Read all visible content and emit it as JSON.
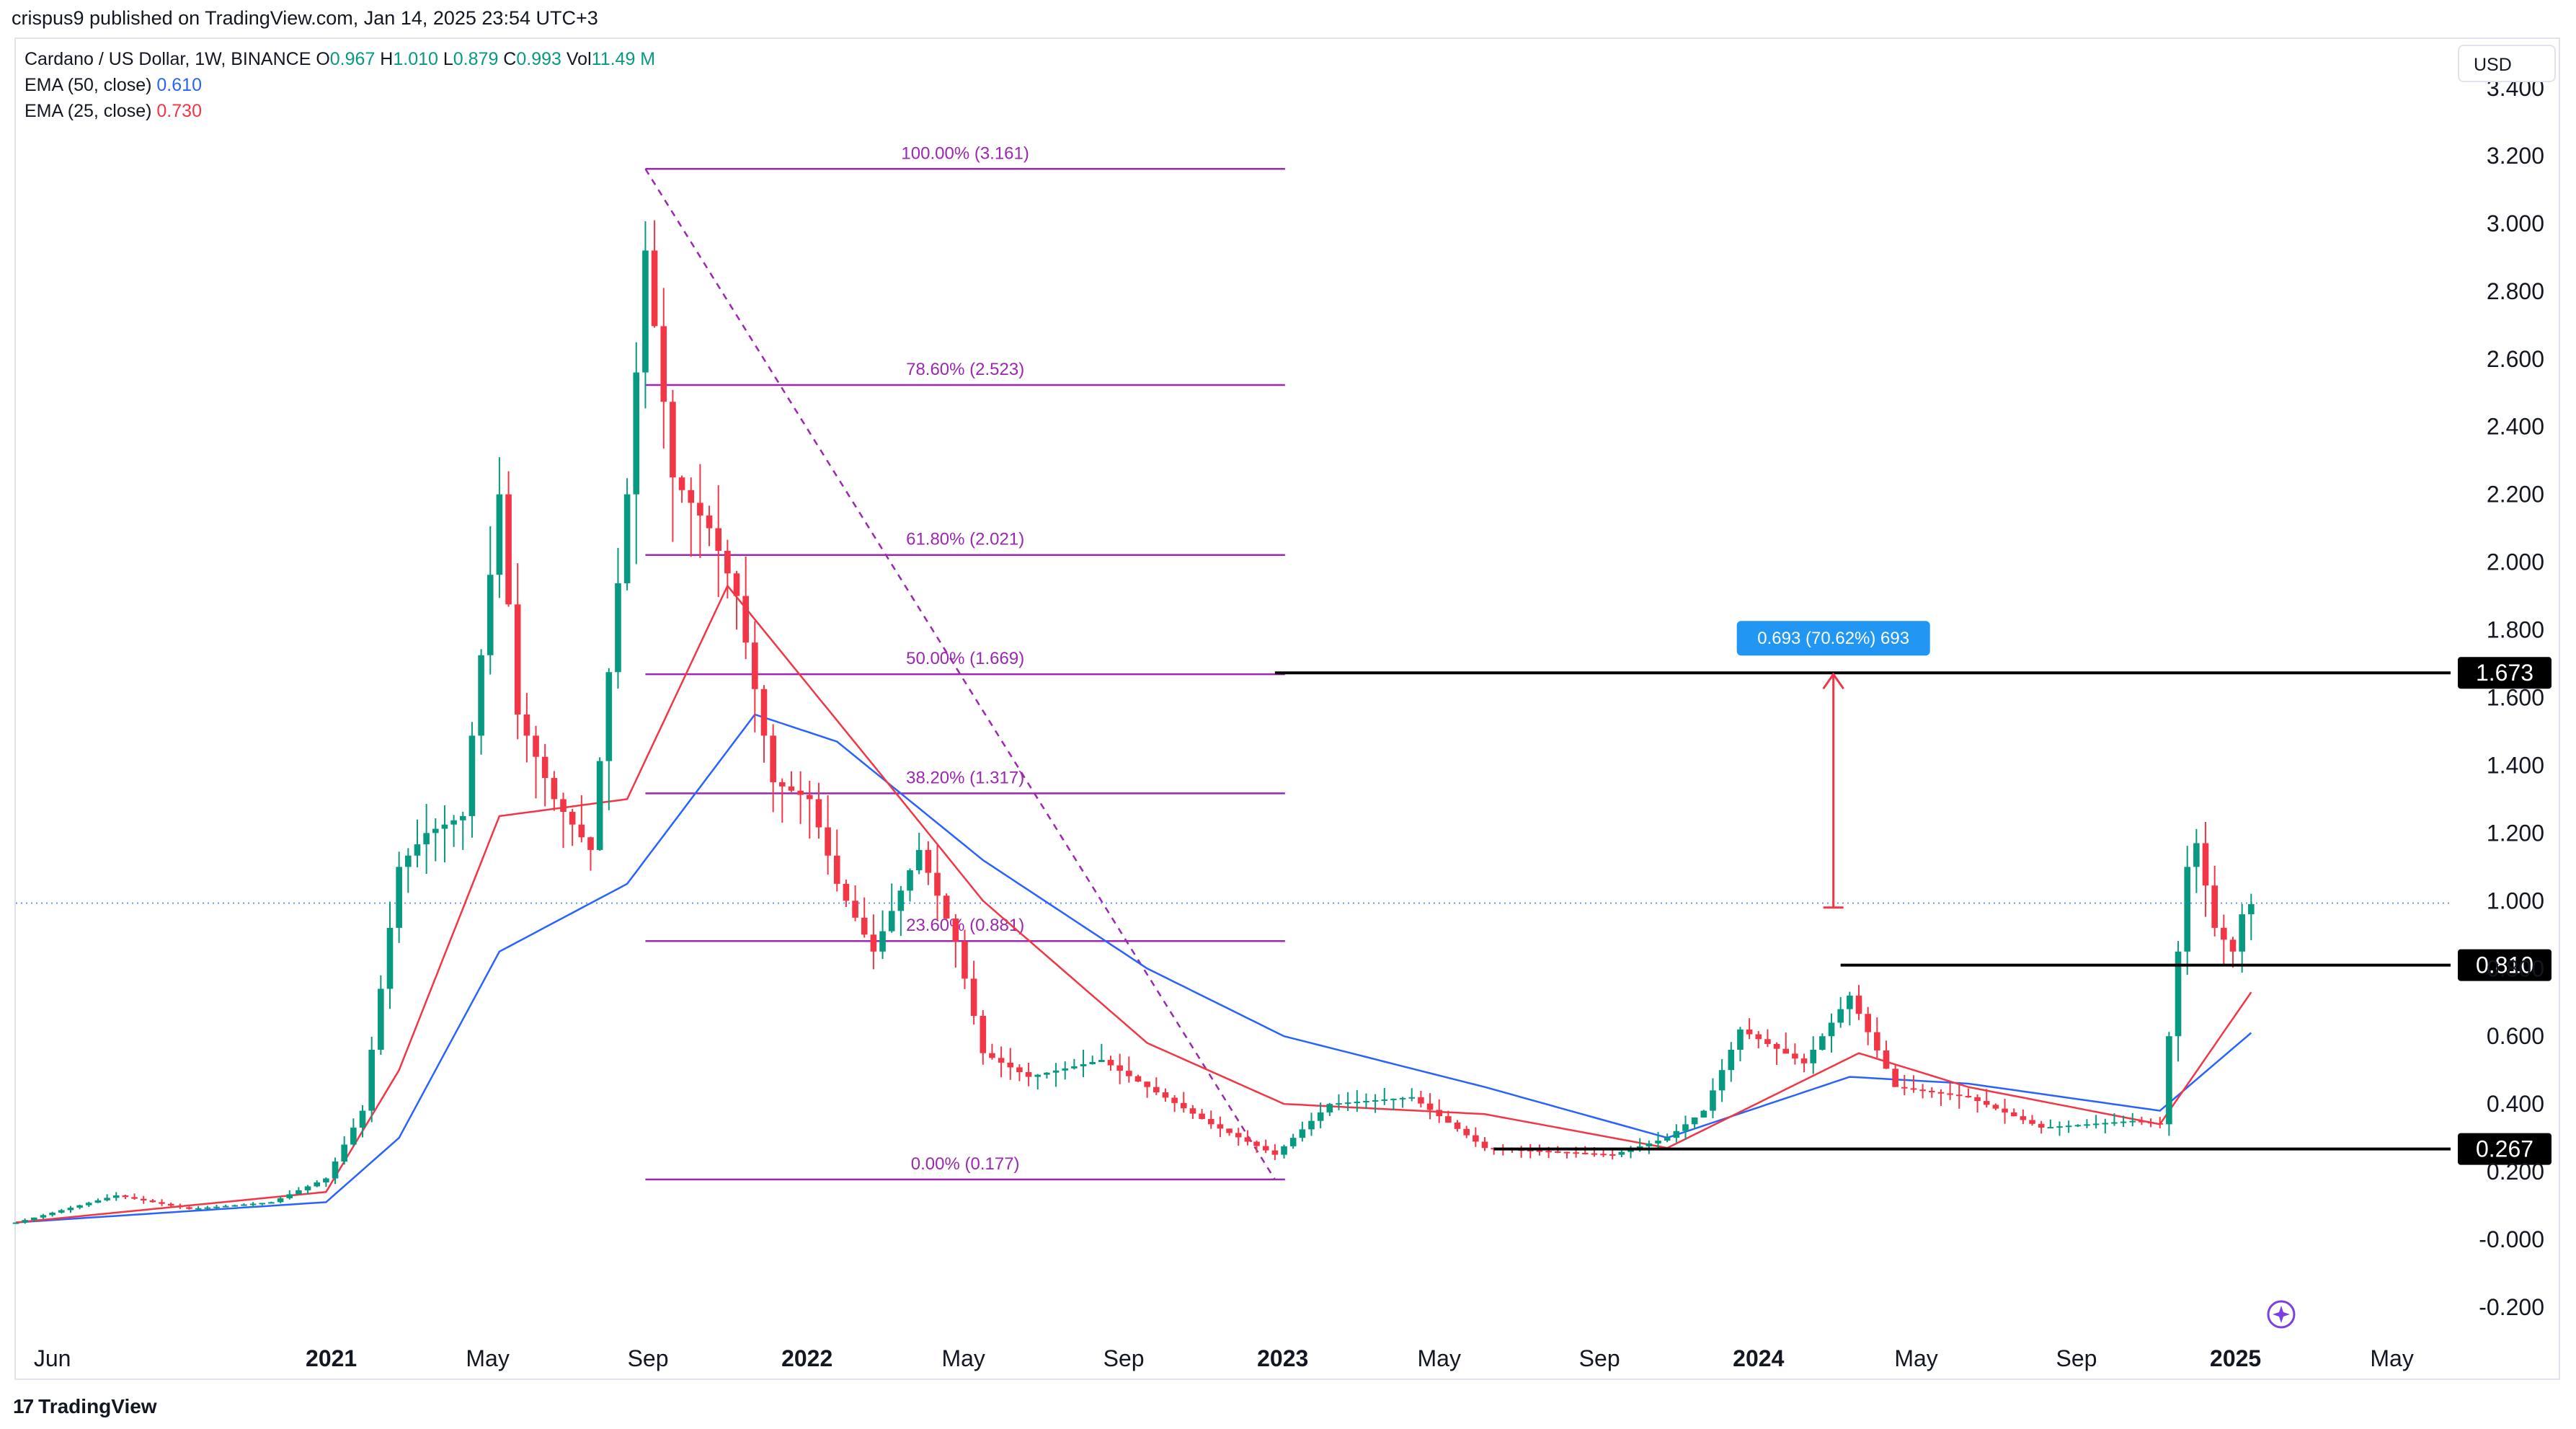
{
  "header": {
    "publisher": "crispus9 published on TradingView.com, Jan 14, 2025 23:54 UTC+3"
  },
  "legend": {
    "symbol": "Cardano / US Dollar, 1W, BINANCE",
    "ohlc": {
      "o_label": "O",
      "o": "0.967",
      "h_label": "H",
      "h": "1.010",
      "l_label": "L",
      "l": "0.879",
      "c_label": "C",
      "c": "0.993",
      "vol_label": "Vol",
      "vol": "11.49 M"
    },
    "ema50": {
      "label": "EMA (50, close)",
      "value": "0.610"
    },
    "ema25": {
      "label": "EMA (25, close)",
      "value": "0.730"
    }
  },
  "currency": "USD",
  "footer": {
    "brand": "TradingView",
    "logo": "17"
  },
  "colors": {
    "up": "#089981",
    "down": "#f23645",
    "ema50": "#2962ff",
    "ema25": "#f23645",
    "fib": "#9c27b0",
    "measure": "#2196f3"
  },
  "icons": {
    "logo": "tradingview-logo-icon",
    "bottom_right": "compass-icon"
  },
  "chart_data": {
    "type": "candlestick",
    "symbol": "ADAUSD",
    "interval": "1W",
    "ylim": [
      -0.2,
      3.4
    ],
    "y_ticks": [
      "3.400",
      "3.200",
      "3.000",
      "2.800",
      "2.600",
      "2.400",
      "2.200",
      "2.000",
      "1.800",
      "1.600",
      "1.400",
      "1.200",
      "1.000",
      "0.800",
      "0.600",
      "0.400",
      "0.200",
      "-0.000",
      "-0.200"
    ],
    "x_ticks": [
      {
        "label": "Jun",
        "bold": false,
        "date": "2020-06-01"
      },
      {
        "label": "2021",
        "bold": true,
        "date": "2021-01-01"
      },
      {
        "label": "May",
        "bold": false,
        "date": "2021-05-01"
      },
      {
        "label": "Sep",
        "bold": false,
        "date": "2021-09-01"
      },
      {
        "label": "2022",
        "bold": true,
        "date": "2022-01-01"
      },
      {
        "label": "May",
        "bold": false,
        "date": "2022-05-01"
      },
      {
        "label": "Sep",
        "bold": false,
        "date": "2022-09-01"
      },
      {
        "label": "2023",
        "bold": true,
        "date": "2023-01-01"
      },
      {
        "label": "May",
        "bold": false,
        "date": "2023-05-01"
      },
      {
        "label": "Sep",
        "bold": false,
        "date": "2023-09-01"
      },
      {
        "label": "2024",
        "bold": true,
        "date": "2024-01-01"
      },
      {
        "label": "May",
        "bold": false,
        "date": "2024-05-01"
      },
      {
        "label": "Sep",
        "bold": false,
        "date": "2024-09-01"
      },
      {
        "label": "2025",
        "bold": true,
        "date": "2025-01-01"
      },
      {
        "label": "May",
        "bold": false,
        "date": "2025-05-01"
      }
    ],
    "x_range": [
      "2020-05-04",
      "2025-06-15"
    ],
    "close_keypoints": [
      [
        "2020-05-04",
        0.05
      ],
      [
        "2020-07-20",
        0.13
      ],
      [
        "2020-09-14",
        0.09
      ],
      [
        "2020-11-16",
        0.11
      ],
      [
        "2020-12-28",
        0.18
      ],
      [
        "2021-01-25",
        0.38
      ],
      [
        "2021-02-22",
        1.1
      ],
      [
        "2021-03-15",
        1.2
      ],
      [
        "2021-04-12",
        1.25
      ],
      [
        "2021-05-10",
        2.2
      ],
      [
        "2021-05-24",
        1.55
      ],
      [
        "2021-06-21",
        1.3
      ],
      [
        "2021-07-19",
        1.15
      ],
      [
        "2021-08-16",
        2.2
      ],
      [
        "2021-08-30",
        2.92
      ],
      [
        "2021-09-20",
        2.25
      ],
      [
        "2021-10-18",
        2.1
      ],
      [
        "2021-11-08",
        1.9
      ],
      [
        "2021-12-06",
        1.35
      ],
      [
        "2022-01-03",
        1.3
      ],
      [
        "2022-01-24",
        1.05
      ],
      [
        "2022-02-21",
        0.85
      ],
      [
        "2022-03-28",
        1.15
      ],
      [
        "2022-04-25",
        0.88
      ],
      [
        "2022-05-16",
        0.55
      ],
      [
        "2022-06-20",
        0.48
      ],
      [
        "2022-08-15",
        0.53
      ],
      [
        "2022-09-19",
        0.45
      ],
      [
        "2022-11-07",
        0.34
      ],
      [
        "2022-12-26",
        0.25
      ],
      [
        "2023-02-06",
        0.4
      ],
      [
        "2023-04-10",
        0.42
      ],
      [
        "2023-06-05",
        0.27
      ],
      [
        "2023-09-11",
        0.25
      ],
      [
        "2023-10-23",
        0.3
      ],
      [
        "2023-11-20",
        0.38
      ],
      [
        "2023-12-18",
        0.62
      ],
      [
        "2024-02-05",
        0.52
      ],
      [
        "2024-03-11",
        0.72
      ],
      [
        "2024-04-15",
        0.45
      ],
      [
        "2024-06-10",
        0.42
      ],
      [
        "2024-08-05",
        0.33
      ],
      [
        "2024-10-14",
        0.35
      ],
      [
        "2024-11-04",
        0.34
      ],
      [
        "2024-11-11",
        0.6
      ],
      [
        "2024-11-25",
        1.1
      ],
      [
        "2024-12-02",
        1.17
      ],
      [
        "2024-12-16",
        0.92
      ],
      [
        "2024-12-30",
        0.85
      ],
      [
        "2025-01-06",
        0.96
      ],
      [
        "2025-01-13",
        0.99
      ]
    ],
    "ema50_keypoints": [
      [
        "2020-05-04",
        0.05
      ],
      [
        "2020-12-28",
        0.11
      ],
      [
        "2021-02-22",
        0.3
      ],
      [
        "2021-05-10",
        0.85
      ],
      [
        "2021-08-16",
        1.05
      ],
      [
        "2021-11-22",
        1.55
      ],
      [
        "2022-01-24",
        1.47
      ],
      [
        "2022-05-16",
        1.12
      ],
      [
        "2022-09-19",
        0.8
      ],
      [
        "2023-01-02",
        0.6
      ],
      [
        "2023-06-05",
        0.45
      ],
      [
        "2023-10-23",
        0.3
      ],
      [
        "2024-03-11",
        0.48
      ],
      [
        "2024-06-10",
        0.46
      ],
      [
        "2024-11-04",
        0.38
      ],
      [
        "2025-01-13",
        0.61
      ]
    ],
    "ema25_keypoints": [
      [
        "2020-05-04",
        0.05
      ],
      [
        "2020-12-28",
        0.14
      ],
      [
        "2021-02-22",
        0.5
      ],
      [
        "2021-05-10",
        1.25
      ],
      [
        "2021-08-16",
        1.3
      ],
      [
        "2021-11-01",
        1.93
      ],
      [
        "2022-02-21",
        1.4
      ],
      [
        "2022-05-16",
        1.0
      ],
      [
        "2022-09-19",
        0.58
      ],
      [
        "2023-01-02",
        0.4
      ],
      [
        "2023-06-05",
        0.37
      ],
      [
        "2023-10-23",
        0.27
      ],
      [
        "2024-03-18",
        0.55
      ],
      [
        "2024-06-10",
        0.45
      ],
      [
        "2024-11-04",
        0.34
      ],
      [
        "2025-01-13",
        0.73
      ]
    ],
    "last_price": 0.993,
    "fibonacci": {
      "from_date": "2021-08-30",
      "to_date": "2022-12-26",
      "levels": [
        {
          "label": "100.00% (3.161)",
          "value": 3.161
        },
        {
          "label": "78.60% (2.523)",
          "value": 2.523
        },
        {
          "label": "61.80% (2.021)",
          "value": 2.021
        },
        {
          "label": "50.00% (1.669)",
          "value": 1.669
        },
        {
          "label": "38.20% (1.317)",
          "value": 1.317
        },
        {
          "label": "23.60% (0.881)",
          "value": 0.881
        },
        {
          "label": "0.00% (0.177)",
          "value": 0.177
        }
      ]
    },
    "horizontal_levels": [
      {
        "label": "1.673",
        "value": 1.673,
        "from_date": "2022-12-26"
      },
      {
        "label": "0.810",
        "value": 0.81,
        "from_date": "2024-03-04"
      },
      {
        "label": "0.267",
        "value": 0.267,
        "from_date": "2023-06-12"
      }
    ],
    "measurement": {
      "label": "0.693 (70.62%) 693",
      "date": "2024-03-04",
      "from": 0.98,
      "to": 1.673
    }
  }
}
